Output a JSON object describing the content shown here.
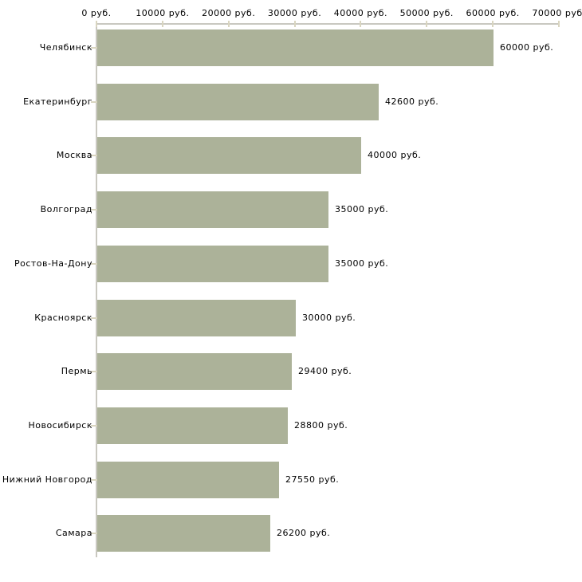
{
  "chart_data": {
    "type": "bar",
    "orientation": "horizontal",
    "title": "",
    "xlabel": "",
    "ylabel": "",
    "legend": "none",
    "grid": false,
    "x_axis": {
      "position": "top",
      "min": 0,
      "max": 70000,
      "tick_values": [
        0,
        10000,
        20000,
        30000,
        40000,
        50000,
        60000,
        70000
      ],
      "tick_labels": [
        "0 руб.",
        "10000 руб.",
        "20000 руб.",
        "30000 руб.",
        "40000 руб.",
        "50000 руб.",
        "60000 руб.",
        "70000 руб."
      ]
    },
    "categories": [
      "Челябинск",
      "Екатеринбург",
      "Москва",
      "Волгоград",
      "Ростов-На-Дону",
      "Красноярск",
      "Пермь",
      "Новосибирск",
      "Нижний Новгород",
      "Самара"
    ],
    "values": [
      60000,
      42600,
      40000,
      35000,
      35000,
      30000,
      29400,
      28800,
      27550,
      26200
    ],
    "value_labels": [
      "60000 руб.",
      "42600 руб.",
      "40000 руб.",
      "35000 руб.",
      "35000 руб.",
      "30000 руб.",
      "29400 руб.",
      "28800 руб.",
      "27550 руб.",
      "26200 руб."
    ],
    "colors": {
      "bar": "#acb299",
      "axis_line": "#c9c8c0",
      "tick": "#d9d5c0",
      "text": "#000000",
      "background": "#ffffff"
    }
  }
}
